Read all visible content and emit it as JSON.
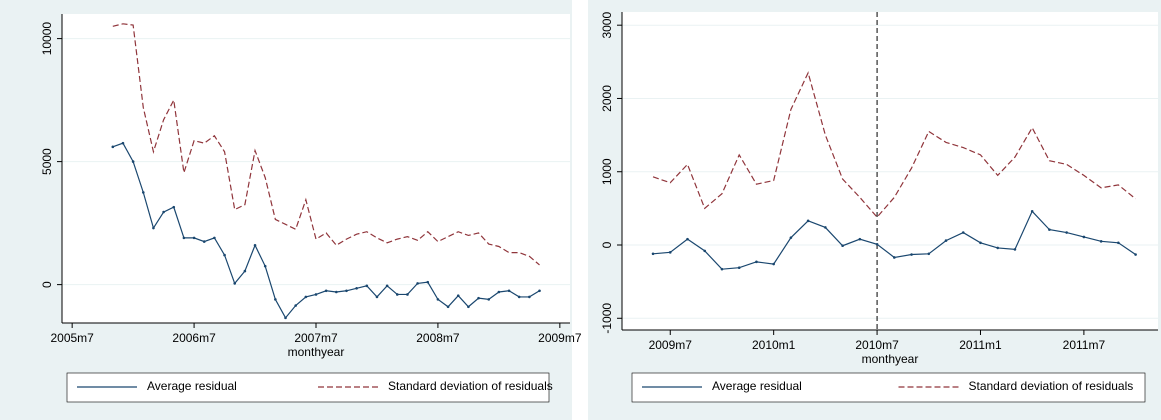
{
  "chart_data": [
    {
      "type": "line",
      "xlabel": "monthyear",
      "x": [
        550,
        551,
        552,
        553,
        554,
        555,
        556,
        557,
        558,
        559,
        560,
        561,
        562,
        563,
        564,
        565,
        566,
        567,
        568,
        569,
        570,
        571,
        572,
        573,
        574,
        575,
        576,
        577,
        578,
        579,
        580,
        581,
        582,
        583,
        584,
        585,
        586,
        587,
        588,
        589,
        590,
        591,
        592
      ],
      "series": [
        {
          "name": "Average residual",
          "color": "#1a476f",
          "dash": false,
          "values": [
            5600,
            5750,
            5000,
            3750,
            2300,
            2950,
            3150,
            1900,
            1900,
            1750,
            1900,
            1200,
            50,
            550,
            1600,
            750,
            -600,
            -1350,
            -850,
            -500,
            -400,
            -250,
            -300,
            -250,
            -150,
            -50,
            -500,
            -50,
            -400,
            -400,
            50,
            100,
            -600,
            -900,
            -450,
            -900,
            -550,
            -600,
            -300,
            -250,
            -500,
            -500,
            -250
          ]
        },
        {
          "name": "Standard deviation of residuals",
          "color": "#90353b",
          "dash": true,
          "values": [
            10500,
            10600,
            10550,
            7200,
            5400,
            6700,
            7500,
            4550,
            5850,
            5750,
            6050,
            5400,
            3050,
            3250,
            5450,
            4350,
            2650,
            2450,
            2250,
            3450,
            1850,
            2100,
            1600,
            1850,
            2050,
            2150,
            1900,
            1700,
            1850,
            1950,
            1800,
            2150,
            1750,
            1950,
            2150,
            2000,
            2100,
            1650,
            1550,
            1300,
            1300,
            1150,
            800
          ]
        }
      ],
      "xlim": [
        545,
        595
      ],
      "ylim": [
        -1560,
        11000
      ],
      "xticks": [
        {
          "value": 546,
          "label": "2005m7"
        },
        {
          "value": 558,
          "label": "2006m7"
        },
        {
          "value": 570,
          "label": "2007m7"
        },
        {
          "value": 582,
          "label": "2008m7"
        },
        {
          "value": 594,
          "label": "2009m7"
        }
      ],
      "yticks": [
        0,
        5000,
        10000
      ],
      "grid": true,
      "legend": "bottom"
    },
    {
      "type": "line",
      "xlabel": "monthyear",
      "x": [
        593,
        594,
        595,
        596,
        597,
        598,
        599,
        600,
        601,
        602,
        603,
        604,
        605,
        606,
        607,
        608,
        609,
        610,
        611,
        612,
        613,
        614,
        615,
        616,
        617,
        618,
        619,
        620,
        621
      ],
      "series": [
        {
          "name": "Average residual",
          "color": "#1a476f",
          "dash": false,
          "values": [
            -120,
            -100,
            80,
            -80,
            -330,
            -310,
            -230,
            -260,
            100,
            330,
            240,
            -10,
            80,
            10,
            -170,
            -130,
            -120,
            60,
            170,
            30,
            -40,
            -60,
            460,
            210,
            170,
            110,
            50,
            30,
            -130
          ]
        },
        {
          "name": "Standard deviation of residuals",
          "color": "#90353b",
          "dash": true,
          "values": [
            930,
            850,
            1100,
            500,
            700,
            1230,
            830,
            880,
            1850,
            2350,
            1500,
            900,
            650,
            380,
            650,
            1050,
            1550,
            1400,
            1330,
            1230,
            950,
            1200,
            1600,
            1150,
            1100,
            950,
            780,
            820,
            630
          ]
        }
      ],
      "xlim": [
        591.2,
        622.3
      ],
      "ylim": [
        -1160,
        3180
      ],
      "xticks": [
        {
          "value": 594,
          "label": "2009m7"
        },
        {
          "value": 600,
          "label": "2010m1"
        },
        {
          "value": 606,
          "label": "2010m7"
        },
        {
          "value": 612,
          "label": "2011m1"
        },
        {
          "value": 618,
          "label": "2011m7"
        }
      ],
      "yticks": [
        -1000,
        0,
        1000,
        2000,
        3000
      ],
      "vlines": [
        606
      ],
      "grid": true,
      "legend": "bottom"
    }
  ]
}
